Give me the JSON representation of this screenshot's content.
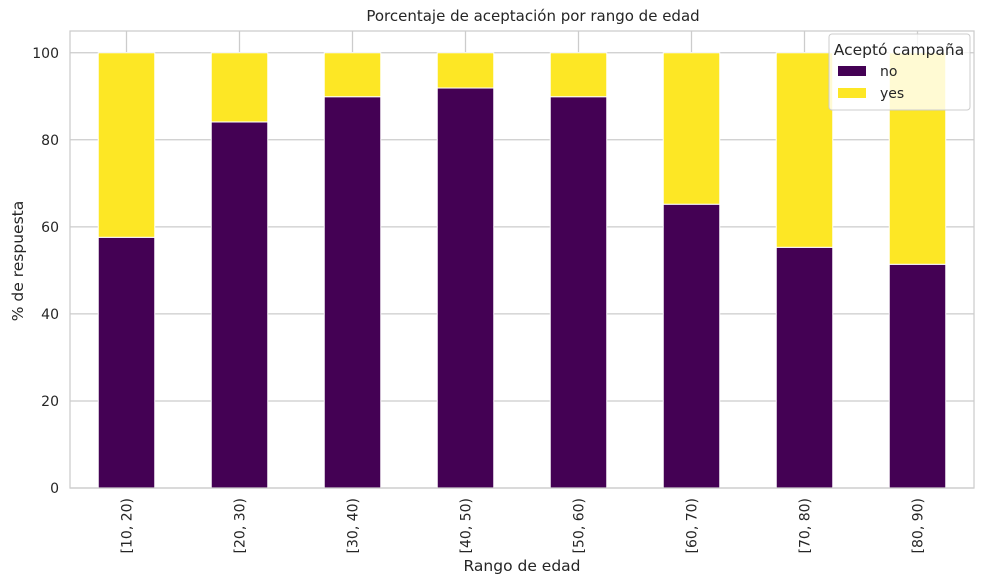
{
  "chart_data": {
    "type": "bar",
    "stacked": true,
    "title": "Porcentaje de aceptación por rango de edad",
    "xlabel": "Rango de edad",
    "ylabel": "% de respuesta",
    "categories": [
      "[10, 20)",
      "[20, 30)",
      "[30, 40)",
      "[40, 50)",
      "[50, 60)",
      "[60, 70)",
      "[70, 80)",
      "[80, 90)"
    ],
    "series": [
      {
        "name": "no",
        "color": "#440154",
        "values": [
          57.6,
          84.1,
          89.9,
          91.9,
          89.9,
          65.2,
          55.3,
          51.4
        ]
      },
      {
        "name": "yes",
        "color": "#fde725",
        "values": [
          42.4,
          15.9,
          10.1,
          8.1,
          10.1,
          34.8,
          44.7,
          48.6
        ]
      }
    ],
    "ylim": [
      0,
      105
    ],
    "yticks": [
      0,
      20,
      40,
      60,
      80,
      100
    ],
    "grid": true,
    "legend": {
      "title": "Aceptó campaña",
      "placement": "top-right"
    }
  }
}
